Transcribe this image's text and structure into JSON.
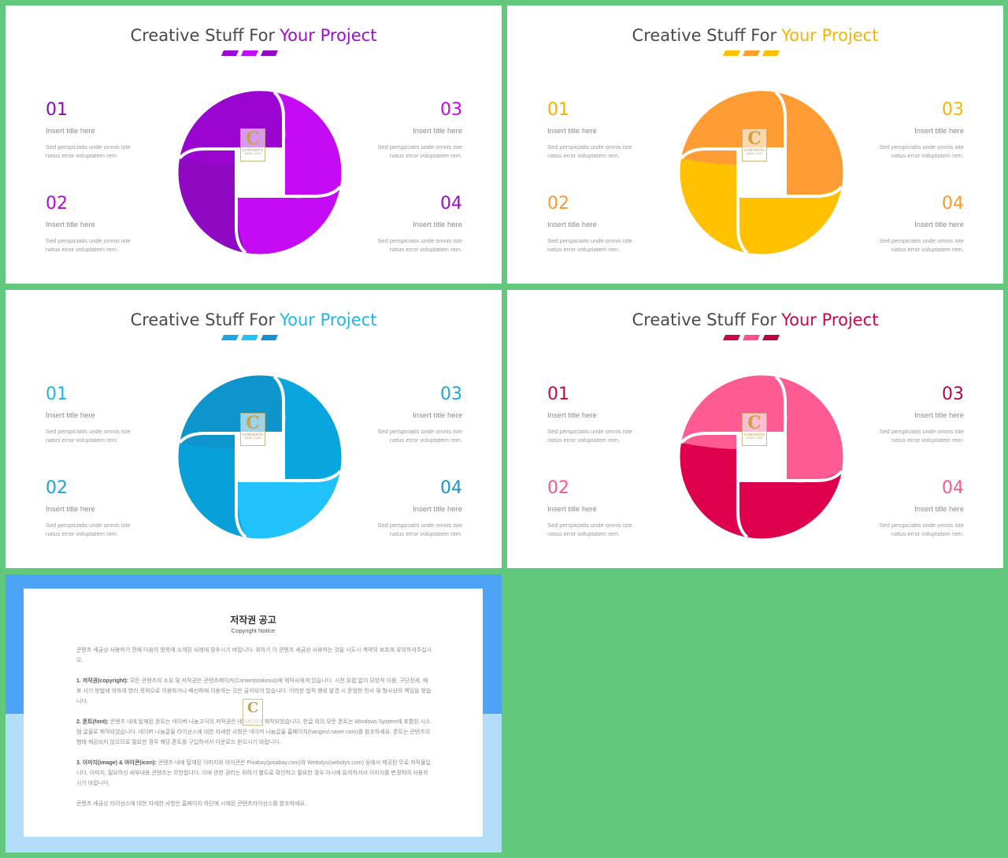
{
  "slides": [
    {
      "title_prefix": "Creative Stuff For",
      "title_accent": "Your Project",
      "colors": {
        "accent": "#a10ad6",
        "num1": "#8a0ab5",
        "num2": "#b30ad8",
        "num3": "#c10ae8",
        "num4": "#9e0ac9",
        "d1": "#9a06d0",
        "d2": "#c20df0",
        "d3": "#8f08c2",
        "d4": "#c40bf4",
        "p1": "#9a06d0",
        "p2": "#c40bf4",
        "p3": "#c40bf4",
        "p4": "#8f08c2"
      },
      "items": [
        {
          "num": "01",
          "title": "Insert title here",
          "desc1": "Sed perspiciatis unde omnis iste",
          "desc2": "natus error voluptatem rem."
        },
        {
          "num": "02",
          "title": "Insert title here",
          "desc1": "Sed perspiciatis unde omnis iste",
          "desc2": "natus error voluptatem rem."
        },
        {
          "num": "03",
          "title": "Insert title here",
          "desc1": "Sed perspiciatis unde omnis iste",
          "desc2": "natus error voluptatem rem."
        },
        {
          "num": "04",
          "title": "Insert title here",
          "desc1": "Sed perspiciatis unde omnis iste",
          "desc2": "natus error voluptatem rem."
        }
      ]
    },
    {
      "title_prefix": "Creative Stuff For",
      "title_accent": "Your Project",
      "colors": {
        "accent": "#f5b400",
        "num1": "#f2b200",
        "num2": "#f79a2f",
        "num3": "#f3b600",
        "num4": "#f79a2f",
        "d1": "#ffc200",
        "d2": "#ff9f30",
        "d3": "#ffc000",
        "d4": "#ff9d33",
        "p1": "#ff9c33",
        "p2": "#ff9c33",
        "p3": "#ffc100",
        "p4": "#ffc100"
      },
      "items": [
        {
          "num": "01",
          "title": "Insert title here",
          "desc1": "Sed perspiciatis unde omnis iste",
          "desc2": "natus error voluptatem rem."
        },
        {
          "num": "02",
          "title": "Insert title here",
          "desc1": "Sed perspiciatis unde omnis iste",
          "desc2": "natus error voluptatem rem."
        },
        {
          "num": "03",
          "title": "Insert title here",
          "desc1": "Sed perspiciatis unde omnis iste",
          "desc2": "natus error voluptatem rem."
        },
        {
          "num": "04",
          "title": "Insert title here",
          "desc1": "Sed perspiciatis unde omnis iste",
          "desc2": "natus error voluptatem rem."
        }
      ]
    },
    {
      "title_prefix": "Creative Stuff For",
      "title_accent": "Your Project",
      "colors": {
        "accent": "#22b6e8",
        "num1": "#1fb2e6",
        "num2": "#1aa3d8",
        "num3": "#1ba8dd",
        "num4": "#1297cf",
        "d1": "#1da6e0",
        "d2": "#22c3f5",
        "d3": "#1592cf",
        "d4": "#22c6fa",
        "p1": "#0d95cc",
        "p2": "#08a6dd",
        "p3": "#1fc2fb",
        "p4": "#08a0d8"
      },
      "items": [
        {
          "num": "01",
          "title": "Insert title here",
          "desc1": "Sed perspiciatis unde omnis iste",
          "desc2": "natus error voluptatem rem."
        },
        {
          "num": "02",
          "title": "Insert title here",
          "desc1": "Sed perspiciatis unde omnis iste",
          "desc2": "natus error voluptatem rem."
        },
        {
          "num": "03",
          "title": "Insert title here",
          "desc1": "Sed perspiciatis unde omnis iste",
          "desc2": "natus error voluptatem rem."
        },
        {
          "num": "04",
          "title": "Insert title here",
          "desc1": "Sed perspiciatis unde omnis iste",
          "desc2": "natus error voluptatem rem."
        }
      ]
    },
    {
      "title_prefix": "Creative Stuff For",
      "title_accent": "Your Project",
      "colors": {
        "accent": "#c9064a",
        "num1": "#c20a43",
        "num2": "#f25a8f",
        "num3": "#b8073e",
        "num4": "#f25a8f",
        "d1": "#c7094a",
        "d2": "#ff4f8d",
        "d3": "#b8063f",
        "d4": "#ff5592",
        "p1": "#ff5b93",
        "p2": "#ff5b93",
        "p3": "#de004c",
        "p4": "#de004c"
      },
      "items": [
        {
          "num": "01",
          "title": "Insert title here",
          "desc1": "Sed perspiciatis unde omnis iste",
          "desc2": "natus error voluptatem rem."
        },
        {
          "num": "02",
          "title": "Insert title here",
          "desc1": "Sed perspiciatis unde omnis iste",
          "desc2": "natus error voluptatem rem."
        },
        {
          "num": "03",
          "title": "Insert title here",
          "desc1": "Sed perspiciatis unde omnis iste",
          "desc2": "natus error voluptatem rem."
        },
        {
          "num": "04",
          "title": "Insert title here",
          "desc1": "Sed perspiciatis unde omnis iste",
          "desc2": "natus error voluptatem rem."
        }
      ]
    }
  ],
  "logo": {
    "letter": "C",
    "line1": "CONTENTS",
    "line2": "MAKE CUSH"
  },
  "copyright": {
    "title": "저작권 공고",
    "subtitle": "Copyright Notice",
    "intro": "콘텐츠 세금상 사용하기 전에 다음의 항목에 소개된 사례에 맞추시기 바랍니다. 위하기 이 콘텐츠 세금상 사용하는 것을 시도시 계약의 보호에 유의하셔주십시오.",
    "p1_label": "1. 저작권(copyright):",
    "p1_text": " 모든 콘텐츠의 소유 및 저작권은 콘텐츠메이커(Contentstokeout)에 제작사에게 있습니다. 시전 유럽 없이 모방적 이용, 구단전세, 배포 시기 방법에 의하여 영리 목적으로 이용하거나 배신하에 이용하는 것은 금지되어 있습니다. 이러한 법적 행위 발견 시 준엄한 민사 및 형사상의 책임을 받습니다.",
    "p2_label": "2. 폰트(font):",
    "p2_text": " 콘텐츠 내에 탑재된 폰트는 네이버 나눔고딕의 저작권은 네이버에게 제작되었습니다. 한글 외의 모든 폰트는 Windows System에 포함된 시스템 글꼴로 제작되었습니다. 네이버 나눔글꼴 라이선스에 대한 자세한 사항은 네이버 나눔글꼴 홈페이지(hangeul.naver.com)를 참조하세요. 폰트는 콘텐츠의 형태 제공되지 않으므로 필요한 경우 해당 폰트를 구입하셔서 다운로드 받으시기 바랍니다.",
    "p3_label": "3. 이미지(image) & 아이콘(icon):",
    "p3_text": " 콘텐츠 내에 탑재된 이미지와 아이콘은 Pixabay(pixabay.com)와 Webolys(webolys.com) 등에서 제공된 무료 저작물입니다. 이미지, 필요하신 세부내용 콘텐츠는 무한합니다. 이에 관한 권리는 위하기 별도로 확인하고 필요한 경우 아시에 유의하셔서 이미지를 변경하여 사용하시기 바랍니다.",
    "outro": "콘텐츠 세금상 라이선스에 대한 자세한 사항은 홈페이지 하단에 시재된 콘텐츠라이선스를 참조하세요."
  }
}
